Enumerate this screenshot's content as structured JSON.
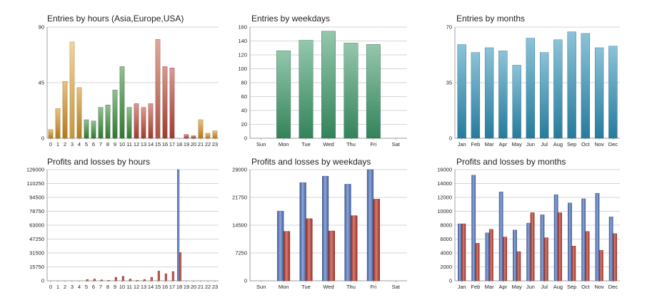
{
  "chart_data": [
    {
      "id": "entries-hours",
      "type": "bar",
      "title": "Entries by hours (Asia,Europe,USA)",
      "categories": [
        "0",
        "1",
        "2",
        "3",
        "4",
        "5",
        "6",
        "7",
        "8",
        "9",
        "10",
        "11",
        "12",
        "13",
        "14",
        "15",
        "16",
        "17",
        "18",
        "19",
        "20",
        "21",
        "22",
        "23"
      ],
      "values": [
        7,
        24,
        46,
        78,
        41,
        15,
        14,
        25,
        27,
        39,
        58,
        25,
        28,
        25,
        28,
        80,
        58,
        57,
        0,
        3,
        2,
        15,
        4,
        6
      ],
      "bar_colors": [
        "#d4901e",
        "#d4901e",
        "#d4901e",
        "#e6b04a",
        "#d4901e",
        "#3b8c3b",
        "#3b8c3b",
        "#3b8c3b",
        "#3b8c3b",
        "#3b8c3b",
        "#3b8c3b",
        "#3b8c3b",
        "#b9473a",
        "#b9473a",
        "#b9473a",
        "#c9634f",
        "#b9473a",
        "#b9473a",
        "#b9473a",
        "#b9473a",
        "#b9473a",
        "#d4901e",
        "#d4901e",
        "#d4901e"
      ],
      "ylim": [
        0,
        90
      ],
      "yticks": [
        "0",
        "45",
        "90"
      ],
      "grid": true
    },
    {
      "id": "entries-weekdays",
      "type": "bar",
      "title": "Entries by weekdays",
      "categories": [
        "Sun",
        "Mon",
        "Tue",
        "Wed",
        "Thu",
        "Fri",
        "Sat"
      ],
      "values": [
        0,
        126,
        141,
        154,
        137,
        135,
        0
      ],
      "color": "#3c9a6a",
      "ylim": [
        0,
        160
      ],
      "yticks": [
        "0",
        "20",
        "40",
        "60",
        "80",
        "100",
        "120",
        "140",
        "160"
      ],
      "grid": true
    },
    {
      "id": "entries-months",
      "type": "bar",
      "title": "Entries by months",
      "categories": [
        "Jan",
        "Feb",
        "Mar",
        "Apr",
        "May",
        "Jun",
        "Jul",
        "Aug",
        "Sep",
        "Oct",
        "Nov",
        "Dec"
      ],
      "values": [
        59,
        54,
        57,
        55,
        46,
        63,
        54,
        62,
        67,
        66,
        57,
        58
      ],
      "color": "#2d91b8",
      "ylim": [
        0,
        70
      ],
      "yticks": [
        "0",
        "35",
        "70"
      ],
      "grid": true
    },
    {
      "id": "profits-hours",
      "type": "bar",
      "title": "Profits and losses by hours",
      "categories": [
        "0",
        "1",
        "2",
        "3",
        "4",
        "5",
        "6",
        "7",
        "8",
        "9",
        "10",
        "11",
        "12",
        "13",
        "14",
        "15",
        "16",
        "17",
        "18",
        "19",
        "20",
        "21",
        "22",
        "23"
      ],
      "series": [
        {
          "color": "#5277c4",
          "values": [
            0,
            0,
            0,
            0,
            0,
            0,
            0,
            0,
            0,
            0,
            0,
            0,
            0,
            0,
            0,
            0,
            0,
            0,
            126000,
            0,
            0,
            0,
            0,
            0
          ]
        },
        {
          "color": "#c0392b",
          "values": [
            0,
            0,
            0,
            0,
            0,
            1500,
            2000,
            1000,
            500,
            4000,
            5000,
            2000,
            500,
            1500,
            4000,
            11000,
            8000,
            10500,
            32000,
            0,
            0,
            0,
            0,
            0
          ]
        }
      ],
      "ylim": [
        0,
        126000
      ],
      "yticks": [
        "0",
        "15750",
        "31500",
        "47250",
        "63000",
        "78750",
        "94500",
        "110250",
        "126000"
      ],
      "grid": true
    },
    {
      "id": "profits-weekdays",
      "type": "bar",
      "title": "Profits and losses by weekdays",
      "categories": [
        "Sun",
        "Mon",
        "Tue",
        "Wed",
        "Thu",
        "Fri",
        "Sat"
      ],
      "series": [
        {
          "color": "#5277c4",
          "values": [
            0,
            18200,
            25600,
            27300,
            25200,
            29000,
            0
          ]
        },
        {
          "color": "#c0392b",
          "values": [
            0,
            12900,
            16200,
            13000,
            17000,
            21300,
            0
          ]
        }
      ],
      "ylim": [
        0,
        29000
      ],
      "yticks": [
        "0",
        "7250",
        "14500",
        "21750",
        "29000"
      ],
      "grid": true
    },
    {
      "id": "profits-months",
      "type": "bar",
      "title": "Profits and losses by months",
      "categories": [
        "Jan",
        "Feb",
        "Mar",
        "Apr",
        "May",
        "Jun",
        "Jul",
        "Aug",
        "Sep",
        "Oct",
        "Nov",
        "Dec"
      ],
      "series": [
        {
          "color": "#5277c4",
          "values": [
            8200,
            15200,
            6900,
            12800,
            7300,
            8300,
            9500,
            12400,
            11200,
            11800,
            12600,
            9200
          ]
        },
        {
          "color": "#c0392b",
          "values": [
            8200,
            5400,
            7400,
            6300,
            4200,
            9800,
            6200,
            9800,
            5000,
            7100,
            4400,
            6800
          ]
        }
      ],
      "ylim": [
        0,
        16000
      ],
      "yticks": [
        "0",
        "2000",
        "4000",
        "6000",
        "8000",
        "10000",
        "12000",
        "14000",
        "16000"
      ],
      "grid": true
    }
  ]
}
